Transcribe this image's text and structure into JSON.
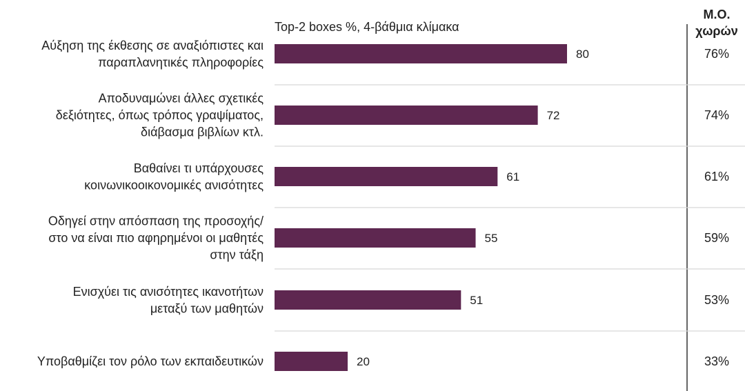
{
  "chart_data": {
    "type": "bar",
    "orientation": "horizontal",
    "subtitle": "Top-2 boxes %, 4-βάθμια κλίμακα",
    "categories": [
      [
        "Αύξηση της έκθεσης σε αναξιόπιστες και",
        "παραπλανητικές πληροφορίες"
      ],
      [
        "Αποδυναμώνει άλλες σχετικές",
        "δεξιότητες, όπως τρόπος γραψίματος,",
        "διάβασμα βιβλίων κτλ."
      ],
      [
        "Βαθαίνει τι υπάρχουσες",
        "κοινωνικοοικονομικές ανισότητες"
      ],
      [
        "Οδηγεί στην απόσπαση της προσοχής/",
        "στο να είναι πιο αφηρημένοι οι μαθητές",
        "στην τάξη"
      ],
      [
        "Ενισχύει τις ανισότητες ικανοτήτων",
        "μεταξύ των μαθητών"
      ],
      [
        "Υποβαθμίζει τον ρόλο των εκπαιδευτικών"
      ]
    ],
    "values": [
      80,
      72,
      61,
      55,
      51,
      20
    ],
    "xlim": [
      0,
      100
    ],
    "bar_color": "#5e2750",
    "grid": false,
    "average_column": {
      "header": [
        "Μ.Ο.",
        "χωρών"
      ],
      "values": [
        "76%",
        "74%",
        "61%",
        "59%",
        "53%",
        "33%"
      ]
    }
  }
}
